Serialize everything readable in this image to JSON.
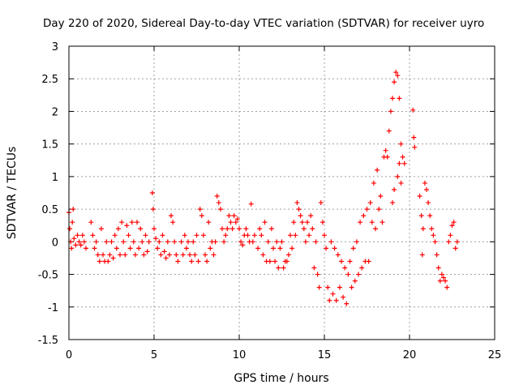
{
  "chart_data": {
    "type": "scatter",
    "title": "Day 220 of 2020, Sidereal Day-to-day VTEC variation (SDTVAR) for receiver uyro",
    "xlabel": "GPS time / hours",
    "ylabel": "SDTVAR / TECUs",
    "xlim": [
      0,
      25
    ],
    "ylim": [
      -1.5,
      3
    ],
    "x_ticks": [
      0,
      5,
      10,
      15,
      20,
      25
    ],
    "y_ticks": [
      -1.5,
      -1,
      -0.5,
      0,
      0.5,
      1,
      1.5,
      2,
      2.5,
      3
    ],
    "x_tick_labels": [
      "0",
      "5",
      "10",
      "15",
      "20",
      "25"
    ],
    "y_tick_labels": [
      "-1.5",
      "-1",
      "-0.5",
      "0",
      "0.5",
      "1",
      "1.5",
      "2",
      "2.5",
      "3"
    ],
    "grid": true,
    "marker": "+",
    "series": [
      {
        "name": "SDTVAR",
        "color": "#ff0000",
        "points": [
          [
            0.0,
            0.45
          ],
          [
            0.05,
            0.2
          ],
          [
            0.1,
            0.0
          ],
          [
            0.15,
            -0.1
          ],
          [
            0.2,
            0.3
          ],
          [
            0.25,
            0.5
          ],
          [
            0.3,
            0.05
          ],
          [
            0.4,
            -0.05
          ],
          [
            0.5,
            0.1
          ],
          [
            0.6,
            0.0
          ],
          [
            0.7,
            -0.05
          ],
          [
            0.8,
            0.1
          ],
          [
            0.9,
            0.0
          ],
          [
            1.0,
            -0.1
          ],
          [
            1.3,
            0.3
          ],
          [
            1.4,
            0.1
          ],
          [
            1.5,
            -0.1
          ],
          [
            1.6,
            0.0
          ],
          [
            1.7,
            -0.2
          ],
          [
            1.8,
            -0.3
          ],
          [
            1.9,
            0.2
          ],
          [
            2.0,
            -0.2
          ],
          [
            2.1,
            -0.3
          ],
          [
            2.2,
            0.0
          ],
          [
            2.3,
            -0.3
          ],
          [
            2.4,
            -0.2
          ],
          [
            2.5,
            0.0
          ],
          [
            2.6,
            -0.25
          ],
          [
            2.7,
            0.1
          ],
          [
            2.8,
            -0.1
          ],
          [
            2.9,
            0.2
          ],
          [
            3.0,
            -0.2
          ],
          [
            3.1,
            0.3
          ],
          [
            3.2,
            0.0
          ],
          [
            3.3,
            -0.2
          ],
          [
            3.4,
            0.25
          ],
          [
            3.5,
            0.1
          ],
          [
            3.6,
            -0.1
          ],
          [
            3.7,
            0.3
          ],
          [
            3.8,
            0.0
          ],
          [
            3.9,
            -0.2
          ],
          [
            4.0,
            0.3
          ],
          [
            4.1,
            -0.1
          ],
          [
            4.2,
            0.2
          ],
          [
            4.3,
            0.0
          ],
          [
            4.4,
            -0.2
          ],
          [
            4.5,
            0.1
          ],
          [
            4.6,
            -0.15
          ],
          [
            4.7,
            0.0
          ],
          [
            4.9,
            0.75
          ],
          [
            4.95,
            0.5
          ],
          [
            5.0,
            0.2
          ],
          [
            5.1,
            0.05
          ],
          [
            5.2,
            -0.1
          ],
          [
            5.3,
            0.0
          ],
          [
            5.4,
            -0.2
          ],
          [
            5.5,
            0.1
          ],
          [
            5.6,
            -0.15
          ],
          [
            5.7,
            -0.25
          ],
          [
            5.8,
            0.0
          ],
          [
            5.9,
            -0.2
          ],
          [
            6.0,
            0.4
          ],
          [
            6.1,
            0.3
          ],
          [
            6.2,
            0.0
          ],
          [
            6.3,
            -0.2
          ],
          [
            6.4,
            -0.3
          ],
          [
            6.6,
            0.0
          ],
          [
            6.7,
            -0.2
          ],
          [
            6.8,
            0.1
          ],
          [
            6.9,
            -0.1
          ],
          [
            7.0,
            0.0
          ],
          [
            7.1,
            -0.2
          ],
          [
            7.2,
            -0.3
          ],
          [
            7.3,
            0.0
          ],
          [
            7.4,
            -0.2
          ],
          [
            7.5,
            0.1
          ],
          [
            7.6,
            -0.3
          ],
          [
            7.7,
            0.5
          ],
          [
            7.8,
            0.4
          ],
          [
            7.9,
            0.1
          ],
          [
            8.0,
            -0.2
          ],
          [
            8.1,
            -0.3
          ],
          [
            8.2,
            0.3
          ],
          [
            8.3,
            -0.1
          ],
          [
            8.4,
            0.0
          ],
          [
            8.5,
            -0.2
          ],
          [
            8.6,
            0.0
          ],
          [
            8.7,
            0.7
          ],
          [
            8.8,
            0.6
          ],
          [
            8.9,
            0.5
          ],
          [
            9.0,
            0.2
          ],
          [
            9.1,
            0.0
          ],
          [
            9.2,
            0.1
          ],
          [
            9.3,
            0.2
          ],
          [
            9.4,
            0.4
          ],
          [
            9.5,
            0.3
          ],
          [
            9.6,
            0.2
          ],
          [
            9.7,
            0.4
          ],
          [
            9.8,
            0.3
          ],
          [
            9.9,
            0.35
          ],
          [
            10.0,
            0.2
          ],
          [
            10.1,
            0.0
          ],
          [
            10.2,
            -0.05
          ],
          [
            10.3,
            0.1
          ],
          [
            10.4,
            0.2
          ],
          [
            10.5,
            0.1
          ],
          [
            10.6,
            0.0
          ],
          [
            10.7,
            0.58
          ],
          [
            10.8,
            0.0
          ],
          [
            10.9,
            0.1
          ],
          [
            11.1,
            -0.1
          ],
          [
            11.2,
            0.2
          ],
          [
            11.3,
            0.1
          ],
          [
            11.4,
            -0.2
          ],
          [
            11.5,
            0.3
          ],
          [
            11.6,
            -0.3
          ],
          [
            11.7,
            0.0
          ],
          [
            11.8,
            -0.3
          ],
          [
            11.9,
            0.2
          ],
          [
            12.0,
            -0.1
          ],
          [
            12.1,
            -0.3
          ],
          [
            12.2,
            0.0
          ],
          [
            12.3,
            -0.4
          ],
          [
            12.4,
            -0.1
          ],
          [
            12.5,
            0.0
          ],
          [
            12.6,
            -0.4
          ],
          [
            12.7,
            -0.3
          ],
          [
            12.8,
            -0.3
          ],
          [
            12.9,
            -0.2
          ],
          [
            13.0,
            0.1
          ],
          [
            13.1,
            -0.1
          ],
          [
            13.2,
            0.3
          ],
          [
            13.3,
            0.1
          ],
          [
            13.4,
            0.6
          ],
          [
            13.5,
            0.5
          ],
          [
            13.6,
            0.4
          ],
          [
            13.7,
            0.3
          ],
          [
            13.8,
            0.2
          ],
          [
            13.9,
            0.0
          ],
          [
            14.0,
            0.3
          ],
          [
            14.1,
            0.1
          ],
          [
            14.2,
            0.4
          ],
          [
            14.3,
            0.2
          ],
          [
            14.4,
            -0.4
          ],
          [
            14.5,
            0.0
          ],
          [
            14.6,
            -0.5
          ],
          [
            14.7,
            -0.7
          ],
          [
            14.8,
            0.6
          ],
          [
            14.9,
            0.3
          ],
          [
            15.0,
            0.1
          ],
          [
            15.1,
            -0.1
          ],
          [
            15.2,
            -0.7
          ],
          [
            15.3,
            -0.9
          ],
          [
            15.4,
            0.0
          ],
          [
            15.5,
            -0.8
          ],
          [
            15.6,
            -0.1
          ],
          [
            15.7,
            -0.9
          ],
          [
            15.8,
            -0.2
          ],
          [
            15.9,
            -0.7
          ],
          [
            16.0,
            -0.3
          ],
          [
            16.1,
            -0.85
          ],
          [
            16.2,
            -0.4
          ],
          [
            16.3,
            -0.95
          ],
          [
            16.4,
            -0.5
          ],
          [
            16.5,
            -0.3
          ],
          [
            16.6,
            -0.7
          ],
          [
            16.7,
            -0.1
          ],
          [
            16.8,
            -0.6
          ],
          [
            16.9,
            0.0
          ],
          [
            17.0,
            -0.5
          ],
          [
            17.1,
            0.3
          ],
          [
            17.2,
            -0.4
          ],
          [
            17.3,
            0.4
          ],
          [
            17.4,
            -0.3
          ],
          [
            17.5,
            0.5
          ],
          [
            17.6,
            -0.3
          ],
          [
            17.7,
            0.6
          ],
          [
            17.8,
            0.3
          ],
          [
            17.9,
            0.9
          ],
          [
            18.0,
            0.2
          ],
          [
            18.1,
            1.1
          ],
          [
            18.2,
            0.5
          ],
          [
            18.3,
            0.7
          ],
          [
            18.4,
            0.3
          ],
          [
            18.5,
            1.3
          ],
          [
            18.6,
            1.4
          ],
          [
            18.7,
            1.3
          ],
          [
            18.8,
            1.7
          ],
          [
            18.9,
            2.0
          ],
          [
            19.0,
            2.2
          ],
          [
            19.1,
            2.45
          ],
          [
            19.2,
            2.6
          ],
          [
            19.3,
            2.55
          ],
          [
            19.4,
            2.2
          ],
          [
            19.5,
            1.5
          ],
          [
            19.6,
            1.3
          ],
          [
            19.7,
            1.2
          ],
          [
            19.0,
            0.6
          ],
          [
            19.1,
            0.8
          ],
          [
            19.3,
            1.0
          ],
          [
            19.4,
            1.2
          ],
          [
            19.5,
            0.9
          ],
          [
            20.2,
            2.02
          ],
          [
            20.25,
            1.6
          ],
          [
            20.3,
            1.45
          ],
          [
            20.6,
            0.7
          ],
          [
            20.7,
            0.4
          ],
          [
            20.75,
            -0.2
          ],
          [
            20.8,
            0.2
          ],
          [
            20.9,
            0.9
          ],
          [
            21.0,
            0.8
          ],
          [
            21.1,
            0.6
          ],
          [
            21.2,
            0.4
          ],
          [
            21.3,
            0.2
          ],
          [
            21.4,
            0.1
          ],
          [
            21.5,
            0.0
          ],
          [
            21.6,
            -0.2
          ],
          [
            21.7,
            -0.4
          ],
          [
            21.8,
            -0.6
          ],
          [
            21.9,
            -0.5
          ],
          [
            22.0,
            -0.55
          ],
          [
            22.1,
            -0.6
          ],
          [
            22.2,
            -0.7
          ],
          [
            22.3,
            0.0
          ],
          [
            22.4,
            0.1
          ],
          [
            22.5,
            0.25
          ],
          [
            22.6,
            0.3
          ],
          [
            22.7,
            -0.1
          ],
          [
            22.8,
            0.0
          ]
        ]
      }
    ]
  }
}
